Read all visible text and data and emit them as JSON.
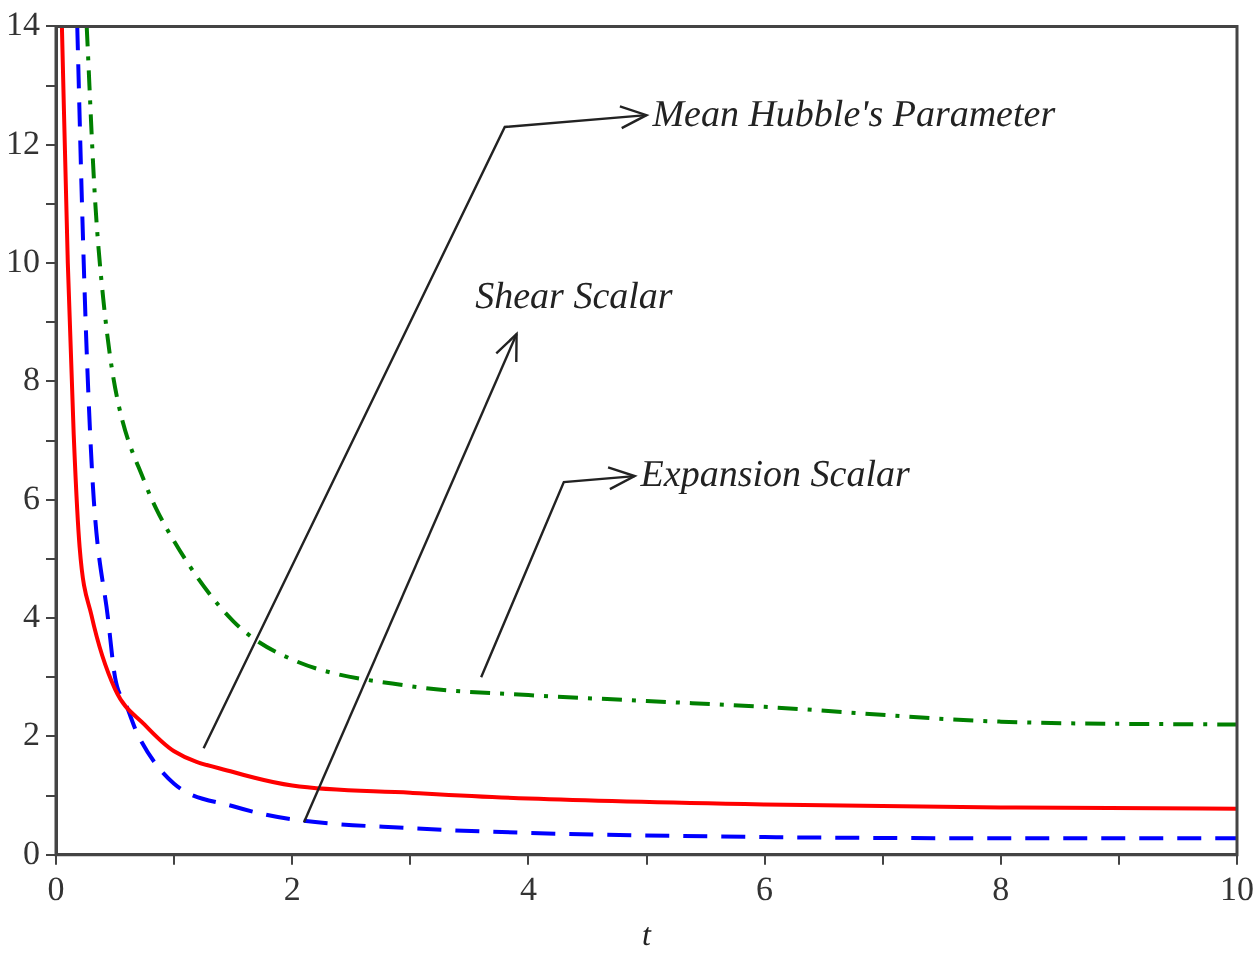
{
  "chart_data": {
    "type": "line",
    "xlabel": "t",
    "xlim": [
      0,
      10
    ],
    "ylim": [
      0,
      14
    ],
    "xticks": [
      0,
      {
        "value": 1,
        "label": null
      },
      2,
      {
        "value": 3,
        "label": null
      },
      4,
      {
        "value": 5,
        "label": null
      },
      6,
      {
        "value": 7,
        "label": null
      },
      8,
      {
        "value": 9,
        "label": null
      },
      10
    ],
    "yticks": [
      0,
      {
        "value": 1,
        "label": null
      },
      2,
      {
        "value": 3,
        "label": null
      },
      4,
      {
        "value": 5,
        "label": null
      },
      6,
      {
        "value": 7,
        "label": null
      },
      8,
      {
        "value": 9,
        "label": null
      },
      10,
      {
        "value": 11,
        "label": null
      },
      12,
      {
        "value": 13,
        "label": null
      },
      14
    ],
    "grid": false,
    "legend": false,
    "marker": "none",
    "series": [
      {
        "color": "#ff0000",
        "line_style": "solid",
        "x": [
          0.05,
          0.1,
          0.15,
          0.2,
          0.3,
          0.5,
          0.75,
          1,
          1.5,
          2,
          3,
          4,
          6,
          8,
          10
        ],
        "values": [
          14,
          10,
          7.1,
          5.2,
          4.05,
          2.8,
          2.2,
          1.75,
          1.4,
          1.17,
          1.05,
          0.95,
          0.85,
          0.8,
          0.78
        ]
      },
      {
        "color": "#0000ff",
        "line_style": "dashed",
        "x": [
          0.18,
          0.22,
          0.26,
          0.32,
          0.44,
          0.5,
          0.6,
          0.7,
          1,
          1.5,
          2,
          3,
          4,
          6,
          8,
          10
        ],
        "values": [
          14,
          11,
          8.5,
          6,
          4,
          3,
          2.5,
          2,
          1.2,
          0.82,
          0.6,
          0.45,
          0.37,
          0.3,
          0.28,
          0.28
        ]
      },
      {
        "color": "#008000",
        "line_style": "dashdot",
        "x": [
          0.26,
          0.33,
          0.4,
          0.5,
          0.75,
          1,
          1.5,
          2,
          3,
          4,
          5,
          6,
          8,
          10
        ],
        "values": [
          14,
          11.1,
          9.4,
          7.9,
          6.3,
          5.3,
          3.95,
          3.3,
          2.85,
          2.7,
          2.6,
          2.5,
          2.25,
          2.2
        ]
      }
    ],
    "annotations": [
      "Mean Hubble's Parameter",
      "Shear Scalar",
      "Expansion Scalar"
    ]
  }
}
